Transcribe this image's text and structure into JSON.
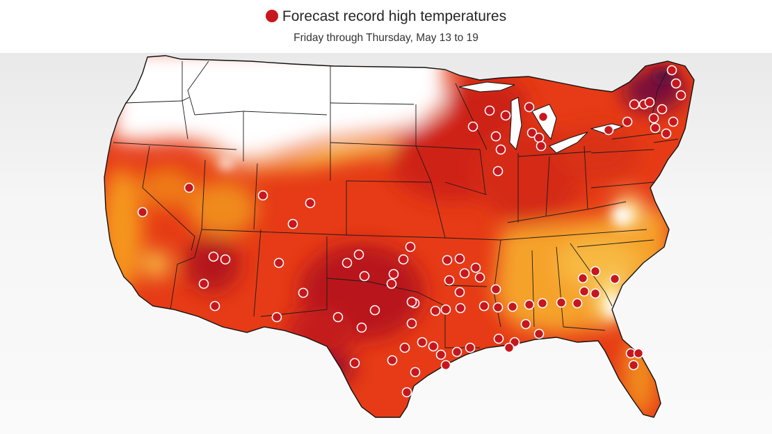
{
  "header": {
    "title": "Forecast record high temperatures",
    "subtitle": "Friday through Thursday, May 13 to 19"
  },
  "legend": {
    "marker_color": "#c8161d",
    "marker_icon": "filled-circle"
  },
  "colors": {
    "heat_extreme": "#7a0a3a",
    "heat_very_high": "#b4141c",
    "heat_high": "#d92e17",
    "heat_elevated": "#ee5a16",
    "heat_moderate": "#f5961f",
    "heat_mild": "#f7b943",
    "heat_low": "#fde68a",
    "no_anomaly": "#ffffff"
  }
}
